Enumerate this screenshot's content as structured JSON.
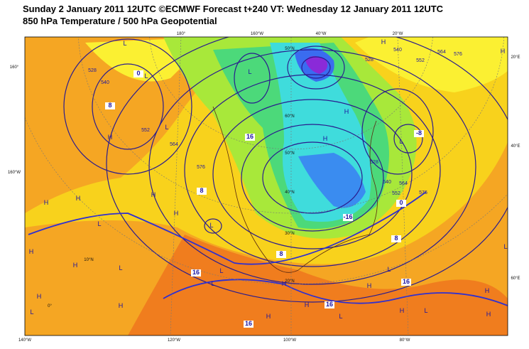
{
  "header": {
    "title_line1": "Sunday 2 January 2011 12UTC ©ECMWF Forecast t+240 VT: Wednesday 12 January 2011 12UTC",
    "title_line2": "850 hPa Temperature / 500 hPa Geopotential"
  },
  "map": {
    "top_labels": [
      "180°",
      "160°W",
      "40°W",
      "20°W"
    ],
    "left_labels": [
      "160°",
      "160°W"
    ],
    "right_labels": [
      "20°E",
      "40°E",
      "60°E"
    ],
    "bottom_labels": [
      "140°W",
      "120°W",
      "100°W",
      "80°W"
    ],
    "lat_labels": [
      "50°N",
      "60°N",
      "50°N",
      "40°N",
      "30°N",
      "20°N",
      "10°N",
      "0°"
    ],
    "temperature_labels": [
      "8",
      "16",
      "8",
      "16",
      "8",
      "16",
      "16",
      "16",
      "-16",
      "-8",
      "0",
      "0",
      "8"
    ],
    "height_labels": [
      "528",
      "540",
      "552",
      "564",
      "576",
      "528",
      "540",
      "552",
      "564",
      "576",
      "528",
      "540",
      "552",
      "564",
      "576"
    ],
    "centers": [
      "L",
      "L",
      "L",
      "H",
      "L",
      "H",
      "H",
      "H",
      "L",
      "H",
      "H",
      "H",
      "L",
      "L",
      "H",
      "H",
      "L",
      "L",
      "H",
      "H",
      "H",
      "L",
      "H",
      "L",
      "H",
      "L",
      "H",
      "L",
      "H",
      "H",
      "L",
      "H",
      "H",
      "L",
      "H"
    ]
  }
}
